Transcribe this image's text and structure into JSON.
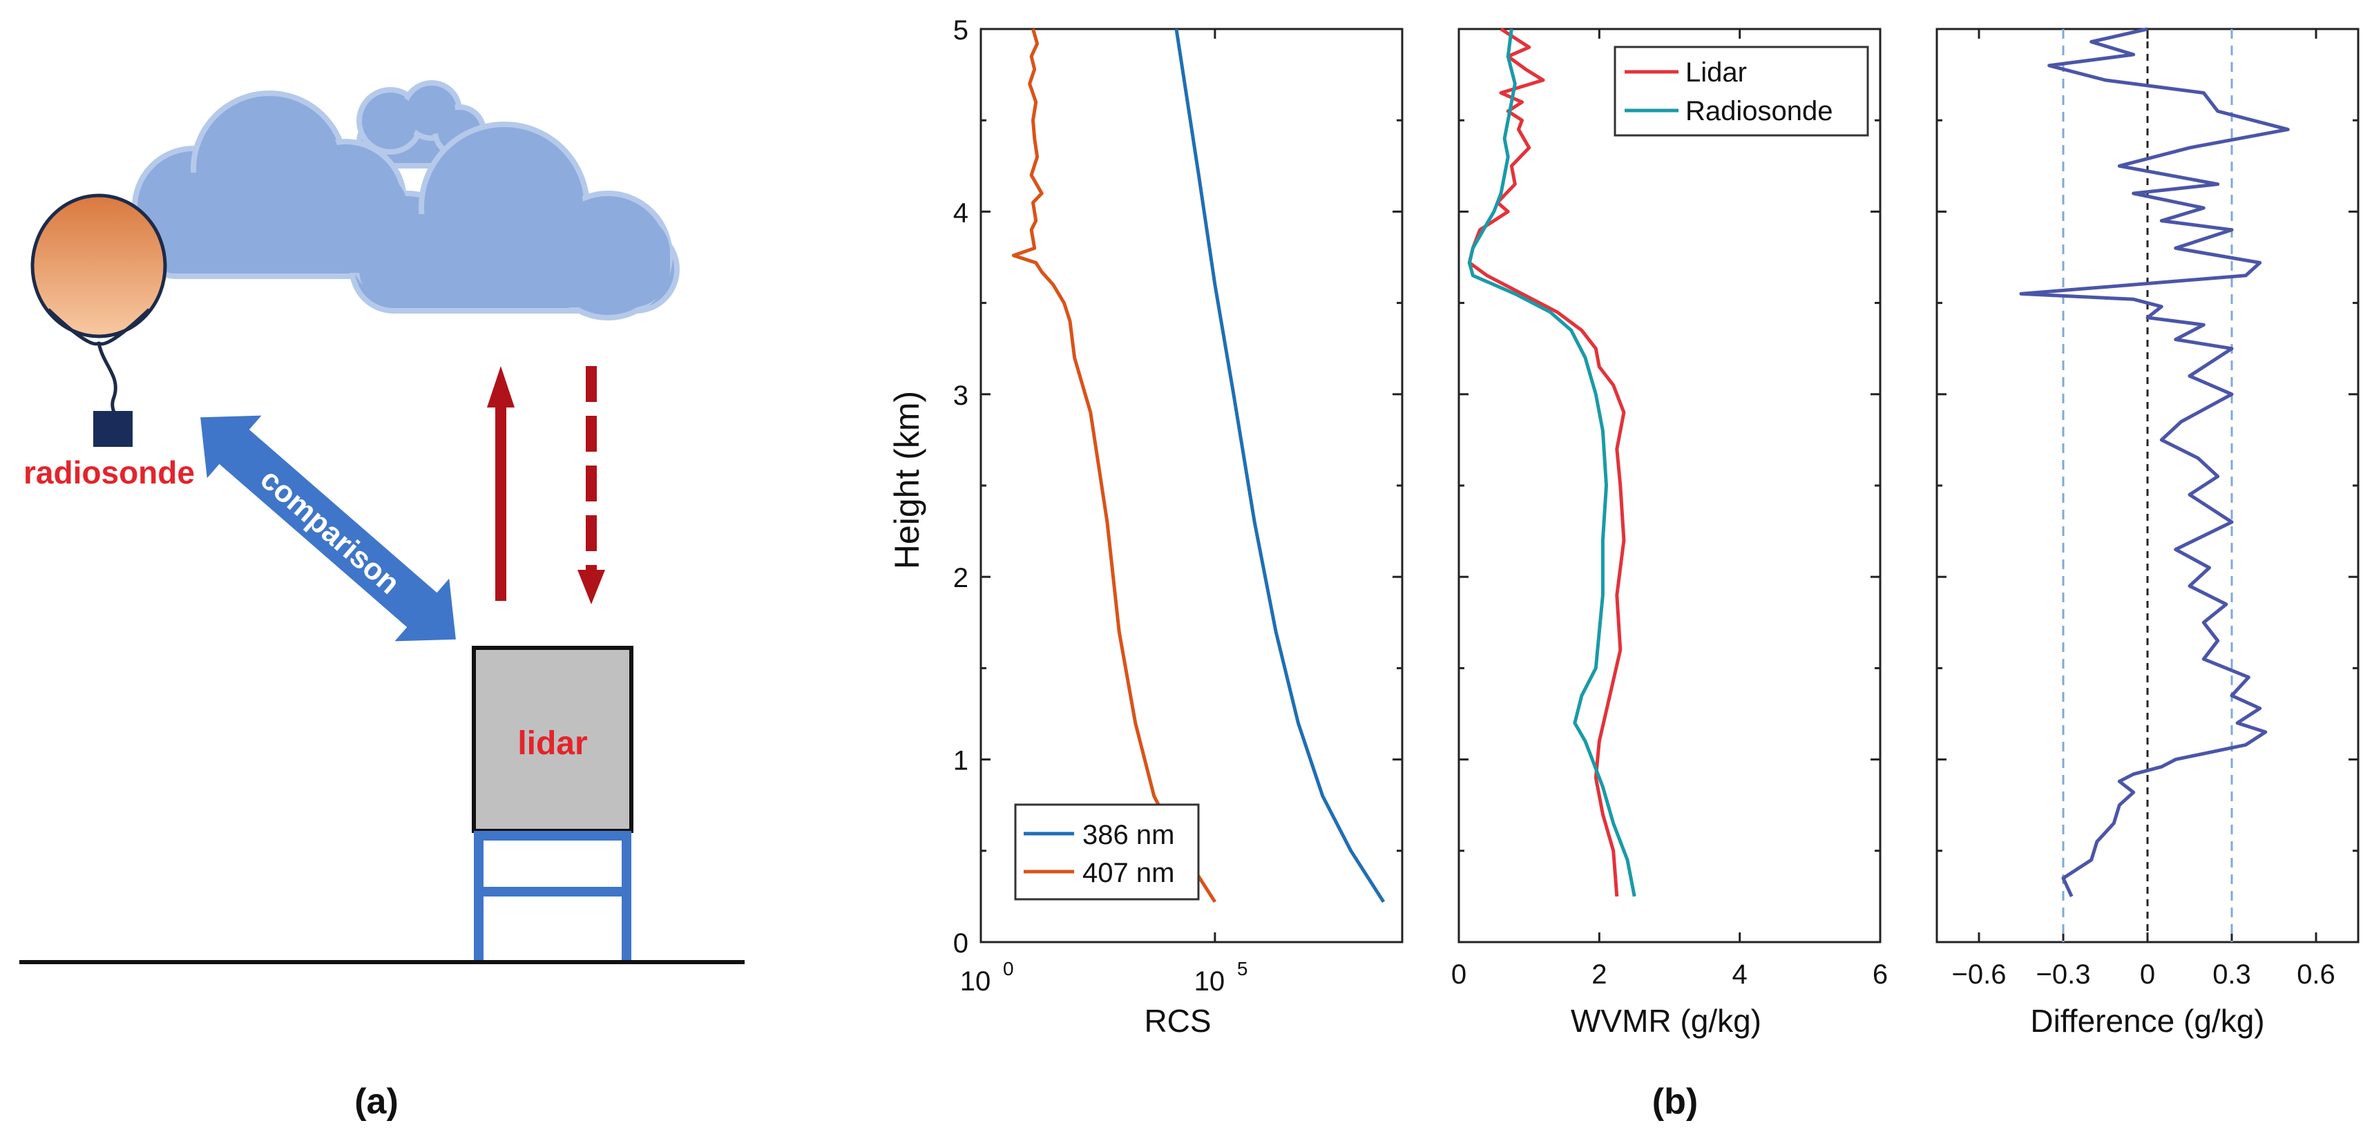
{
  "panel_a": {
    "caption": "(a)",
    "radiosonde_label": "radiosonde",
    "comparison_label": "comparison",
    "lidar_label": "lidar"
  },
  "panel_b": {
    "caption": "(b)",
    "y_label": "Height  (km)"
  },
  "colors": {
    "c386": "#1f6fb4",
    "c407": "#d95319",
    "lidar": "#e2333b",
    "radiosonde": "#1a9aa8",
    "difference": "#4b55a8",
    "threshold": "#7fa9d8",
    "cloud": "#8eabdd",
    "balloon": "#f0a56d",
    "arrow_red": "#b0121a",
    "arrow_blue": "#3f76c9"
  },
  "chart_data": [
    {
      "type": "line",
      "title": "",
      "xlabel": "RCS",
      "ylabel": "Height  (km)",
      "xscale": "log",
      "xlim": [
        1,
        1000000000
      ],
      "ylim": [
        0,
        5
      ],
      "xticks": [
        {
          "value": 1,
          "base": "10",
          "exp": "0"
        },
        {
          "value": 100000,
          "base": "10",
          "exp": "5"
        }
      ],
      "yticks": [
        "0",
        "1",
        "2",
        "3",
        "4",
        "5"
      ],
      "legend": {
        "position": "bottom-left",
        "entries": [
          "386 nm",
          "407 nm"
        ]
      },
      "series": [
        {
          "name": "386 nm",
          "color_key": "c386",
          "x": [
            400000000,
            80000000,
            20000000,
            6000000,
            2000000,
            700000,
            250000,
            100000,
            45000,
            15000
          ],
          "y": [
            0.22,
            0.5,
            0.8,
            1.2,
            1.7,
            2.3,
            3.0,
            3.6,
            4.2,
            5.0
          ]
        },
        {
          "name": "407 nm",
          "color_key": "c407",
          "x": [
            100000,
            20000,
            5000,
            2000,
            900,
            500,
            220,
            100,
            80,
            60,
            35,
            20,
            15,
            5,
            14,
            12,
            15,
            13,
            20,
            12,
            16,
            14,
            13,
            15,
            11,
            14,
            12,
            16,
            13
          ],
          "y": [
            0.22,
            0.5,
            0.8,
            1.2,
            1.7,
            2.3,
            2.9,
            3.2,
            3.4,
            3.5,
            3.6,
            3.67,
            3.72,
            3.76,
            3.8,
            3.9,
            3.95,
            4.05,
            4.1,
            4.2,
            4.3,
            4.4,
            4.5,
            4.6,
            4.7,
            4.78,
            4.85,
            4.92,
            5.0
          ]
        }
      ]
    },
    {
      "type": "line",
      "title": "",
      "xlabel": "WVMR  (g/kg)",
      "ylabel": "",
      "xlim": [
        0,
        6
      ],
      "ylim": [
        0,
        5
      ],
      "xticks": [
        "0",
        "2",
        "4",
        "6"
      ],
      "legend": {
        "position": "top-right",
        "entries": [
          "Lidar",
          "Radiosonde"
        ]
      },
      "series": [
        {
          "name": "Lidar",
          "color_key": "lidar",
          "x": [
            2.25,
            2.2,
            2.05,
            1.95,
            2.0,
            2.15,
            2.3,
            2.25,
            2.35,
            2.3,
            2.25,
            2.35,
            2.2,
            2.0,
            1.95,
            1.75,
            1.4,
            0.9,
            0.4,
            0.15,
            0.2,
            0.3,
            0.5,
            0.7,
            0.55,
            0.8,
            0.75,
            1.0,
            0.85,
            0.9,
            0.7,
            0.9,
            0.6,
            1.2,
            0.95,
            0.7,
            1.0,
            0.8,
            0.6
          ],
          "y": [
            0.25,
            0.5,
            0.7,
            0.9,
            1.1,
            1.35,
            1.6,
            1.9,
            2.2,
            2.5,
            2.7,
            2.9,
            3.05,
            3.15,
            3.25,
            3.35,
            3.45,
            3.55,
            3.65,
            3.72,
            3.8,
            3.9,
            3.95,
            4.0,
            4.05,
            4.15,
            4.25,
            4.35,
            4.45,
            4.5,
            4.55,
            4.6,
            4.65,
            4.72,
            4.78,
            4.85,
            4.9,
            4.95,
            5.0
          ]
        },
        {
          "name": "Radiosonde",
          "color_key": "radiosonde",
          "x": [
            2.5,
            2.4,
            2.2,
            2.05,
            1.9,
            1.8,
            1.65,
            1.75,
            1.95,
            2.0,
            2.05,
            2.05,
            2.1,
            2.05,
            1.95,
            1.8,
            1.6,
            1.3,
            0.8,
            0.2,
            0.15,
            0.2,
            0.35,
            0.5,
            0.6,
            0.65,
            0.7,
            0.65,
            0.7,
            0.75,
            0.8,
            0.7,
            0.75
          ],
          "y": [
            0.25,
            0.45,
            0.65,
            0.85,
            1.0,
            1.1,
            1.2,
            1.35,
            1.5,
            1.7,
            1.9,
            2.2,
            2.5,
            2.8,
            3.0,
            3.2,
            3.35,
            3.45,
            3.55,
            3.65,
            3.72,
            3.8,
            3.9,
            4.0,
            4.1,
            4.2,
            4.3,
            4.4,
            4.5,
            4.6,
            4.7,
            4.85,
            5.0
          ]
        }
      ]
    },
    {
      "type": "line",
      "title": "",
      "xlabel": "Difference   (g/kg)",
      "ylabel": "",
      "xlim": [
        -0.75,
        0.75
      ],
      "ylim": [
        0,
        5
      ],
      "xticks": [
        "−0.6",
        "−0.3",
        "0",
        "0.3",
        "0.6"
      ],
      "reference_lines": [
        -0.3,
        0,
        0.3
      ],
      "series": [
        {
          "name": "Difference",
          "color_key": "difference",
          "x": [
            -0.27,
            -0.3,
            -0.2,
            -0.18,
            -0.12,
            -0.1,
            -0.05,
            -0.1,
            -0.05,
            0.05,
            0.1,
            0.35,
            0.42,
            0.32,
            0.4,
            0.3,
            0.36,
            0.2,
            0.25,
            0.2,
            0.28,
            0.15,
            0.22,
            0.1,
            0.3,
            0.15,
            0.25,
            0.18,
            0.05,
            0.12,
            0.3,
            0.15,
            0.3,
            0.1,
            0.2,
            0.0,
            0.05,
            -0.05,
            -0.45,
            0.35,
            0.4,
            0.1,
            0.3,
            0.05,
            0.2,
            -0.05,
            0.25,
            -0.1,
            0.15,
            0.5,
            0.25,
            0.2,
            -0.15,
            -0.35,
            -0.05,
            -0.2,
            0.0
          ],
          "y": [
            0.25,
            0.35,
            0.45,
            0.55,
            0.65,
            0.75,
            0.82,
            0.88,
            0.92,
            0.96,
            1.0,
            1.08,
            1.15,
            1.2,
            1.28,
            1.35,
            1.45,
            1.55,
            1.65,
            1.75,
            1.85,
            1.95,
            2.05,
            2.15,
            2.3,
            2.45,
            2.55,
            2.65,
            2.75,
            2.85,
            3.0,
            3.1,
            3.25,
            3.3,
            3.38,
            3.42,
            3.48,
            3.52,
            3.55,
            3.65,
            3.72,
            3.8,
            3.9,
            3.95,
            4.02,
            4.1,
            4.15,
            4.25,
            4.35,
            4.45,
            4.55,
            4.65,
            4.72,
            4.8,
            4.86,
            4.93,
            5.0
          ]
        }
      ]
    }
  ]
}
